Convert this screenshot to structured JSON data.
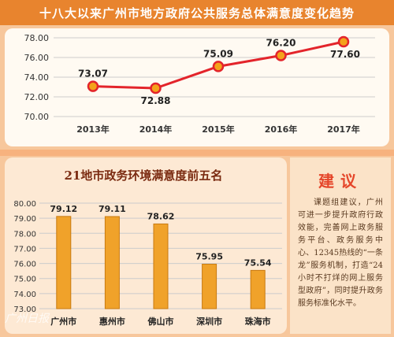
{
  "header": {
    "title": "十八大以来广州市地方政府公共服务总体满意度变化趋势"
  },
  "bottom_chart_title": "21地市政务环境满意度前五名",
  "suggestion": {
    "title": "建议",
    "body": "课题组建议，广州可进一步提升政府行政效能，完善网上政务服务平台、政务服务中心、12345热线的“一条龙”服务机制，打造“24小时不打烊的网上服务型政府”，同时提升政务服务标准化水平。"
  },
  "watermark": "广州日报",
  "chart_data": [
    {
      "type": "line",
      "categories": [
        "2013年",
        "2014年",
        "2015年",
        "2016年",
        "2017年"
      ],
      "series": [
        {
          "values": [
            73.07,
            72.88,
            75.09,
            76.2,
            77.6
          ]
        }
      ],
      "value_labels": [
        "73.07",
        "72.88",
        "75.09",
        "76.20",
        "77.60"
      ],
      "y_ticks": [
        "70.00",
        "72.00",
        "74.00",
        "76.00",
        "78.00"
      ],
      "ylim": [
        70,
        78
      ],
      "grid": true,
      "colors": {
        "line": "#e3242b",
        "marker_fill": "#f4a21a",
        "grid": "#cccccc"
      }
    },
    {
      "type": "bar",
      "title": "21地市政务环境满意度前五名",
      "categories": [
        "广州市",
        "惠州市",
        "佛山市",
        "深圳市",
        "珠海市"
      ],
      "values": [
        79.12,
        79.11,
        78.62,
        75.95,
        75.54
      ],
      "value_labels": [
        "79.12",
        "79.11",
        "78.62",
        "75.95",
        "75.54"
      ],
      "y_ticks": [
        "73.00",
        "74.00",
        "75.00",
        "76.00",
        "77.00",
        "78.00",
        "79.00",
        "80.00"
      ],
      "ylim": [
        73,
        80
      ],
      "grid": true,
      "colors": {
        "bar": "#f0a22a",
        "bar_dark": "#c97a10",
        "grid": "#cccccc"
      }
    }
  ]
}
